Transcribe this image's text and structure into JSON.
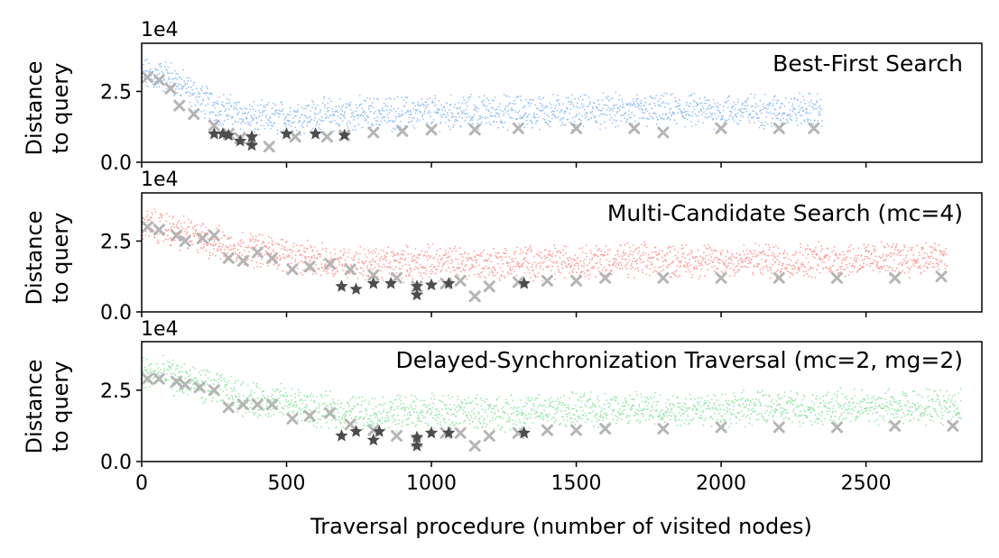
{
  "xlabel": "Traversal procedure (number of visited nodes)",
  "ylabel": "Distance\nto query",
  "ylabel_lines": [
    "Distance",
    "to query"
  ],
  "offset_label": "1e4",
  "x_ticks": [
    0,
    500,
    1000,
    1500,
    2000,
    2500
  ],
  "x_tick_labels": [
    "0",
    "500",
    "1000",
    "1500",
    "2000",
    "2500"
  ],
  "y_ticks": [
    0.0,
    2.5
  ],
  "y_tick_labels": [
    "0.0",
    "2.5"
  ],
  "colors": {
    "best_first": "#99c2f5",
    "multi_candidate": "#ff9f9b",
    "delayed_sync": "#99e6aa",
    "candidate_marker": "#b5b5b5",
    "star_marker": "#4d4d4d"
  },
  "chart_data": [
    {
      "type": "scatter",
      "title": "Best-First Search",
      "xlim": [
        0,
        2900
      ],
      "ylim": [
        0,
        4.2
      ],
      "y_scale_label": "1e4",
      "visited_end": 2350,
      "visited_profile": [
        [
          0,
          3.1
        ],
        [
          100,
          3.0
        ],
        [
          200,
          2.2
        ],
        [
          300,
          1.8
        ],
        [
          400,
          1.5
        ],
        [
          500,
          1.6
        ],
        [
          700,
          1.7
        ],
        [
          1000,
          1.75
        ],
        [
          1500,
          1.8
        ],
        [
          2000,
          1.8
        ],
        [
          2350,
          1.85
        ]
      ],
      "candidates": [
        [
          20,
          3.0
        ],
        [
          60,
          2.9
        ],
        [
          100,
          2.6
        ],
        [
          130,
          2.0
        ],
        [
          180,
          1.7
        ],
        [
          250,
          1.3
        ],
        [
          300,
          1.0
        ],
        [
          340,
          0.85
        ],
        [
          380,
          0.8
        ],
        [
          440,
          0.55
        ],
        [
          530,
          0.9
        ],
        [
          640,
          0.9
        ],
        [
          700,
          0.95
        ],
        [
          800,
          1.05
        ],
        [
          900,
          1.1
        ],
        [
          1000,
          1.15
        ],
        [
          1150,
          1.15
        ],
        [
          1300,
          1.2
        ],
        [
          1500,
          1.2
        ],
        [
          1700,
          1.2
        ],
        [
          1800,
          1.05
        ],
        [
          2000,
          1.2
        ],
        [
          2200,
          1.2
        ],
        [
          2320,
          1.2
        ]
      ],
      "stars": [
        [
          250,
          1.0
        ],
        [
          280,
          1.0
        ],
        [
          300,
          0.95
        ],
        [
          340,
          0.75
        ],
        [
          380,
          0.6
        ],
        [
          380,
          0.9
        ],
        [
          500,
          1.0
        ],
        [
          600,
          1.0
        ],
        [
          700,
          0.95
        ]
      ]
    },
    {
      "type": "scatter",
      "title": "Multi-Candidate Search (mc=4)",
      "xlim": [
        0,
        2900
      ],
      "ylim": [
        0,
        4.2
      ],
      "y_scale_label": "1e4",
      "visited_end": 2780,
      "visited_profile": [
        [
          0,
          3.1
        ],
        [
          100,
          2.9
        ],
        [
          200,
          2.6
        ],
        [
          300,
          2.3
        ],
        [
          400,
          2.2
        ],
        [
          500,
          2.0
        ],
        [
          600,
          1.8
        ],
        [
          800,
          1.7
        ],
        [
          1000,
          1.75
        ],
        [
          1200,
          1.7
        ],
        [
          1500,
          1.8
        ],
        [
          2000,
          1.8
        ],
        [
          2500,
          1.85
        ],
        [
          2780,
          1.9
        ]
      ],
      "candidates": [
        [
          20,
          3.0
        ],
        [
          60,
          2.9
        ],
        [
          120,
          2.7
        ],
        [
          150,
          2.5
        ],
        [
          210,
          2.6
        ],
        [
          250,
          2.7
        ],
        [
          300,
          1.9
        ],
        [
          350,
          1.8
        ],
        [
          400,
          2.1
        ],
        [
          450,
          1.9
        ],
        [
          520,
          1.5
        ],
        [
          580,
          1.6
        ],
        [
          650,
          1.7
        ],
        [
          720,
          1.5
        ],
        [
          800,
          1.3
        ],
        [
          880,
          1.2
        ],
        [
          950,
          0.9
        ],
        [
          1050,
          1.0
        ],
        [
          1100,
          1.1
        ],
        [
          1150,
          0.55
        ],
        [
          1200,
          0.9
        ],
        [
          1300,
          1.05
        ],
        [
          1400,
          1.1
        ],
        [
          1500,
          1.1
        ],
        [
          1600,
          1.2
        ],
        [
          1800,
          1.2
        ],
        [
          2000,
          1.2
        ],
        [
          2200,
          1.2
        ],
        [
          2400,
          1.2
        ],
        [
          2600,
          1.2
        ],
        [
          2760,
          1.25
        ]
      ],
      "stars": [
        [
          690,
          0.9
        ],
        [
          740,
          0.8
        ],
        [
          800,
          1.0
        ],
        [
          860,
          1.0
        ],
        [
          950,
          0.6
        ],
        [
          950,
          0.9
        ],
        [
          1000,
          0.95
        ],
        [
          1060,
          1.0
        ],
        [
          1320,
          1.0
        ]
      ]
    },
    {
      "type": "scatter",
      "title": "Delayed-Synchronization Traversal (mc=2, mg=2)",
      "xlim": [
        0,
        2900
      ],
      "ylim": [
        0,
        4.2
      ],
      "y_scale_label": "1e4",
      "visited_end": 2830,
      "visited_profile": [
        [
          0,
          3.1
        ],
        [
          100,
          3.0
        ],
        [
          200,
          2.7
        ],
        [
          300,
          2.4
        ],
        [
          400,
          2.1
        ],
        [
          500,
          2.1
        ],
        [
          600,
          1.8
        ],
        [
          800,
          1.7
        ],
        [
          1000,
          1.75
        ],
        [
          1200,
          1.7
        ],
        [
          1500,
          1.8
        ],
        [
          2000,
          1.85
        ],
        [
          2500,
          1.9
        ],
        [
          2830,
          1.95
        ]
      ],
      "candidates": [
        [
          20,
          2.9
        ],
        [
          60,
          2.9
        ],
        [
          120,
          2.8
        ],
        [
          150,
          2.7
        ],
        [
          200,
          2.6
        ],
        [
          250,
          2.5
        ],
        [
          300,
          1.9
        ],
        [
          350,
          2.0
        ],
        [
          400,
          2.0
        ],
        [
          450,
          2.0
        ],
        [
          520,
          1.5
        ],
        [
          580,
          1.6
        ],
        [
          650,
          1.7
        ],
        [
          720,
          1.3
        ],
        [
          800,
          1.1
        ],
        [
          880,
          0.9
        ],
        [
          950,
          0.7
        ],
        [
          1050,
          1.0
        ],
        [
          1100,
          1.0
        ],
        [
          1150,
          0.55
        ],
        [
          1200,
          0.9
        ],
        [
          1300,
          1.0
        ],
        [
          1400,
          1.1
        ],
        [
          1500,
          1.1
        ],
        [
          1600,
          1.15
        ],
        [
          1800,
          1.15
        ],
        [
          2000,
          1.2
        ],
        [
          2200,
          1.2
        ],
        [
          2400,
          1.2
        ],
        [
          2600,
          1.25
        ],
        [
          2800,
          1.25
        ]
      ],
      "stars": [
        [
          690,
          0.9
        ],
        [
          740,
          1.05
        ],
        [
          800,
          0.75
        ],
        [
          820,
          1.05
        ],
        [
          950,
          0.55
        ],
        [
          950,
          0.85
        ],
        [
          1000,
          1.0
        ],
        [
          1060,
          1.0
        ],
        [
          1320,
          1.0
        ]
      ]
    }
  ]
}
